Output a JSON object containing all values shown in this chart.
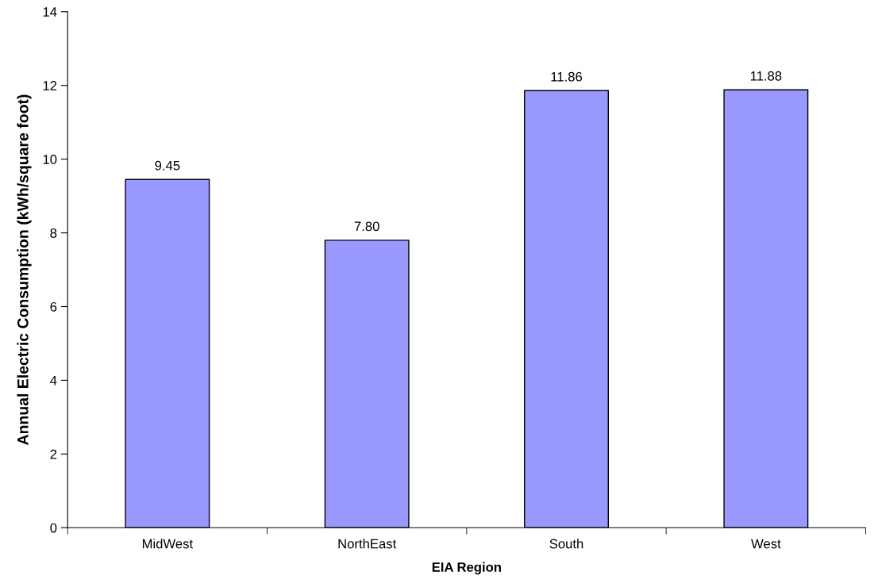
{
  "chart_data": {
    "type": "bar",
    "xlabel": "EIA Region",
    "ylabel": "Annual Electric Consumption (kWh/square foot)",
    "categories": [
      "MidWest",
      "NorthEast",
      "South",
      "West"
    ],
    "values": [
      9.45,
      7.8,
      11.86,
      11.88
    ],
    "value_labels": [
      "9.45",
      "7.80",
      "11.86",
      "11.88"
    ],
    "color": "#9999ff",
    "ylim": [
      0,
      14
    ],
    "yticks": [
      0,
      2,
      4,
      6,
      8,
      10,
      12,
      14
    ],
    "grid": false
  }
}
